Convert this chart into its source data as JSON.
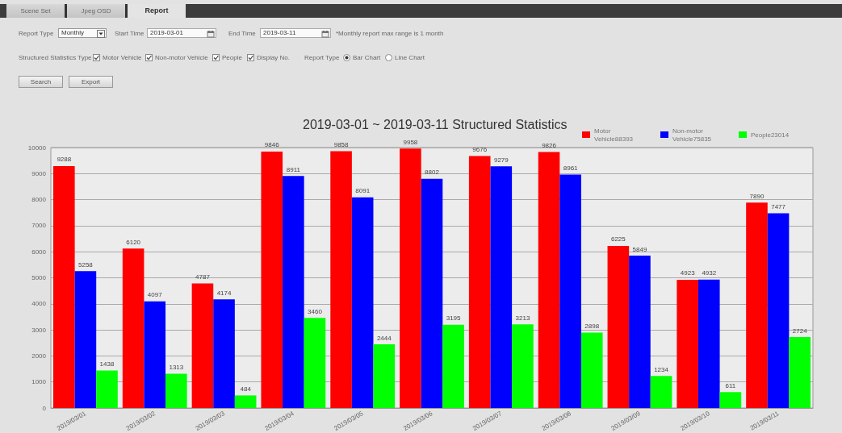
{
  "chart_data": {
    "type": "bar",
    "title": "2019-03-01 ~ 2019-03-11 Structured Statistics",
    "categories": [
      "2019/03/01",
      "2019/03/02",
      "2019/03/03",
      "2019/03/04",
      "2019/03/05",
      "2019/03/06",
      "2019/03/07",
      "2019/03/08",
      "2019/03/09",
      "2019/03/10",
      "2019/03/11"
    ],
    "series": [
      {
        "name": "Motor Vehicle88393",
        "color": "#ff0000",
        "values": [
          9288,
          6120,
          4787,
          9846,
          9858,
          9958,
          9676,
          9826,
          6225,
          4923,
          7890
        ]
      },
      {
        "name": "Non-motor Vehicle75835",
        "color": "#0000ff",
        "values": [
          5258,
          4097,
          4174,
          8911,
          8091,
          8802,
          9279,
          8961,
          5849,
          4932,
          7477
        ]
      },
      {
        "name": "People23014",
        "color": "#00ff00",
        "values": [
          1438,
          1313,
          484,
          3460,
          2444,
          3195,
          3213,
          2898,
          1234,
          611,
          2724
        ]
      }
    ],
    "ylim": [
      0,
      10000
    ],
    "yticks": [
      0,
      1000,
      2000,
      3000,
      4000,
      5000,
      6000,
      7000,
      8000,
      9000,
      10000
    ],
    "grid": "y",
    "legend": "top right",
    "data_labels": true,
    "annotations": [
      "Scene Set",
      "Jpeg OSD",
      "Report",
      "Report Type",
      "Monthly",
      "Start Time",
      "2019-03-01",
      "End Time",
      "2019-03-11",
      "*Monthly report max range is 1 month",
      "Structured Statistics Type",
      "Motor Vehicle",
      "Non-motor Vehicle",
      "People",
      "Display No.",
      "Report Type",
      "Bar Chart",
      "Line Chart",
      "Search",
      "Export"
    ]
  }
}
